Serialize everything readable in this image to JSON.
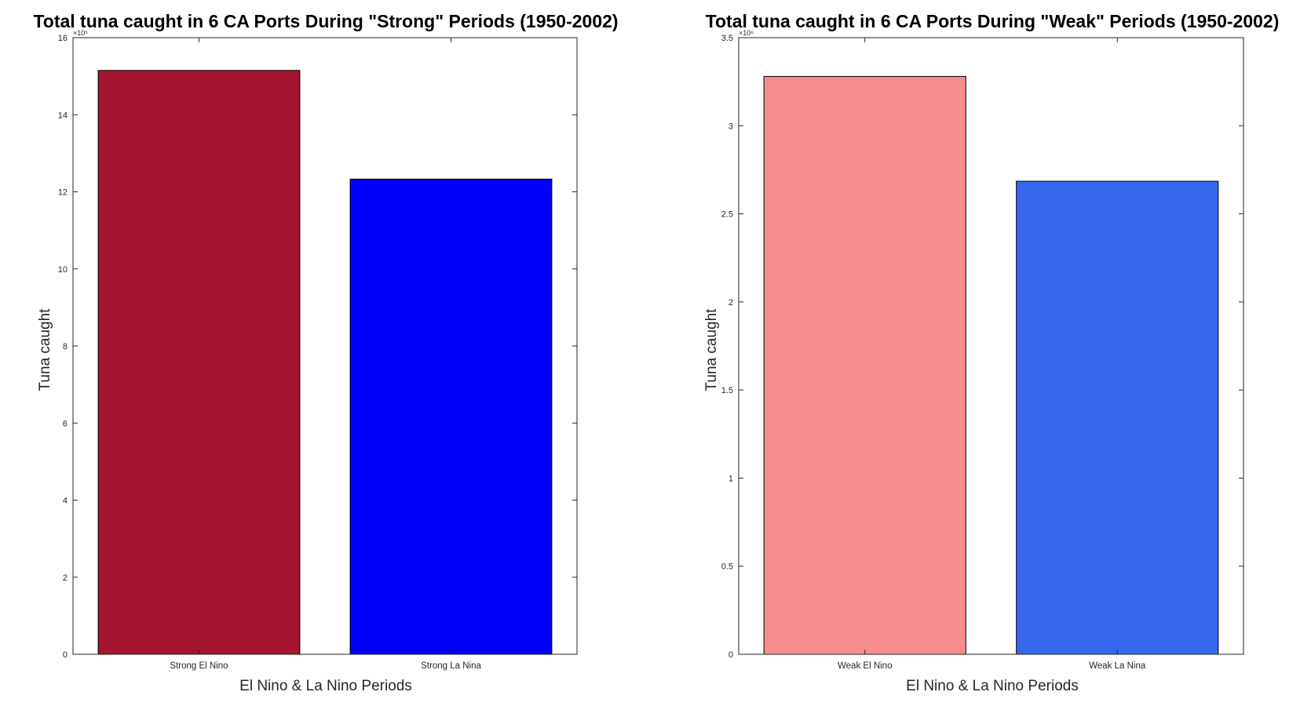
{
  "chart_data": [
    {
      "type": "bar",
      "title": "Total tuna caught in 6 CA Ports During \"Strong\" Periods (1950-2002)",
      "xlabel": "El Nino & La Nino Periods",
      "ylabel": "Tuna caught",
      "categories": [
        "Strong El Nino",
        "Strong La Nina"
      ],
      "values": [
        15.15,
        12.33
      ],
      "colors": [
        "#a31530",
        "#0000ff"
      ],
      "ylim": [
        0,
        16
      ],
      "yticks": [
        0,
        2,
        4,
        6,
        8,
        10,
        12,
        14,
        16
      ],
      "exponent_label": "×10⁵",
      "grid": false
    },
    {
      "type": "bar",
      "title": "Total tuna caught in 6 CA Ports During \"Weak\" Periods (1950-2002)",
      "xlabel": "El Nino & La Nino Periods",
      "ylabel": "Tuna caught",
      "categories": [
        "Weak El Nino",
        "Weak La Nina"
      ],
      "values": [
        3.28,
        2.685
      ],
      "colors": [
        "#f78c8c",
        "#3668ef"
      ],
      "ylim": [
        0,
        3.5
      ],
      "yticks": [
        0,
        0.5,
        1,
        1.5,
        2,
        2.5,
        3,
        3.5
      ],
      "exponent_label": "×10⁶",
      "grid": false
    }
  ]
}
